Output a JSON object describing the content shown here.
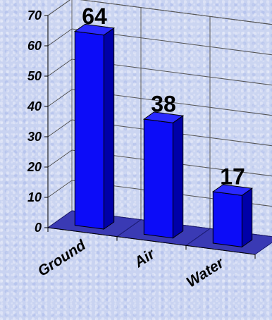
{
  "chart_data": {
    "type": "bar",
    "categories": [
      "Ground",
      "Air",
      "Water"
    ],
    "values": [
      64,
      38,
      17
    ],
    "data_labels": [
      "64",
      "38",
      "17"
    ],
    "ylim": [
      0,
      70
    ],
    "yticks": [
      "0",
      "10",
      "20",
      "30",
      "40",
      "50",
      "60",
      "70"
    ],
    "grid": true,
    "three_d": true,
    "colors": {
      "bar_front": "#0c0cf8",
      "bar_side": "#0000a8",
      "bar_top": "#2a2aff",
      "floor": "#3a3ab4",
      "background": "#c9d3f1"
    }
  }
}
